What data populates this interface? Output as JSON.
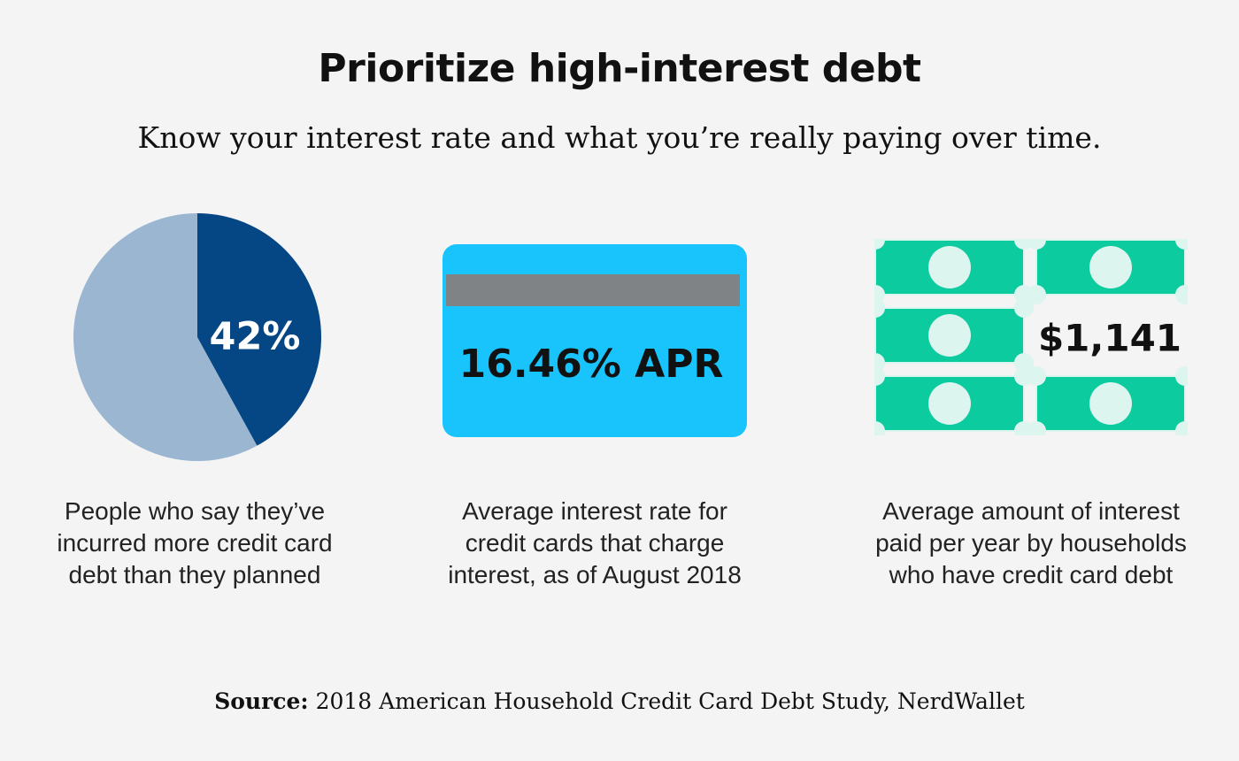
{
  "title": "Prioritize high-interest debt",
  "subtitle": "Know your interest rate and what you’re really paying over time.",
  "colors": {
    "pie_highlight": "#054784",
    "pie_rest": "#9ab6d1",
    "card": "#18c4fb",
    "card_stripe": "#7f8385",
    "bill": "#0ccb9e",
    "bill_circle": "#dcf5ee",
    "text": "#111111",
    "background": "#f4f4f5"
  },
  "chart_data": [
    {
      "type": "pie",
      "slices": [
        {
          "label": "42%",
          "value": 42
        },
        {
          "label": "",
          "value": 58
        }
      ],
      "caption_lines": [
        "People who say they’ve",
        "incurred more credit card",
        "debt than they planned"
      ]
    },
    {
      "type": "stat",
      "value": 16.46,
      "label": "16.46% APR",
      "icon": "credit-card-icon",
      "caption_lines": [
        "Average interest rate for",
        "credit cards that charge",
        "interest, as of August 2018"
      ]
    },
    {
      "type": "stat",
      "value": 1141,
      "label": "$1,141",
      "icon": "dollar-bills-icon",
      "caption_lines": [
        "Average amount of interest",
        "paid per year by households",
        "who have credit card debt"
      ]
    }
  ],
  "source": {
    "label": "Source:",
    "text": " 2018 American Household Credit Card Debt Study, NerdWallet"
  }
}
